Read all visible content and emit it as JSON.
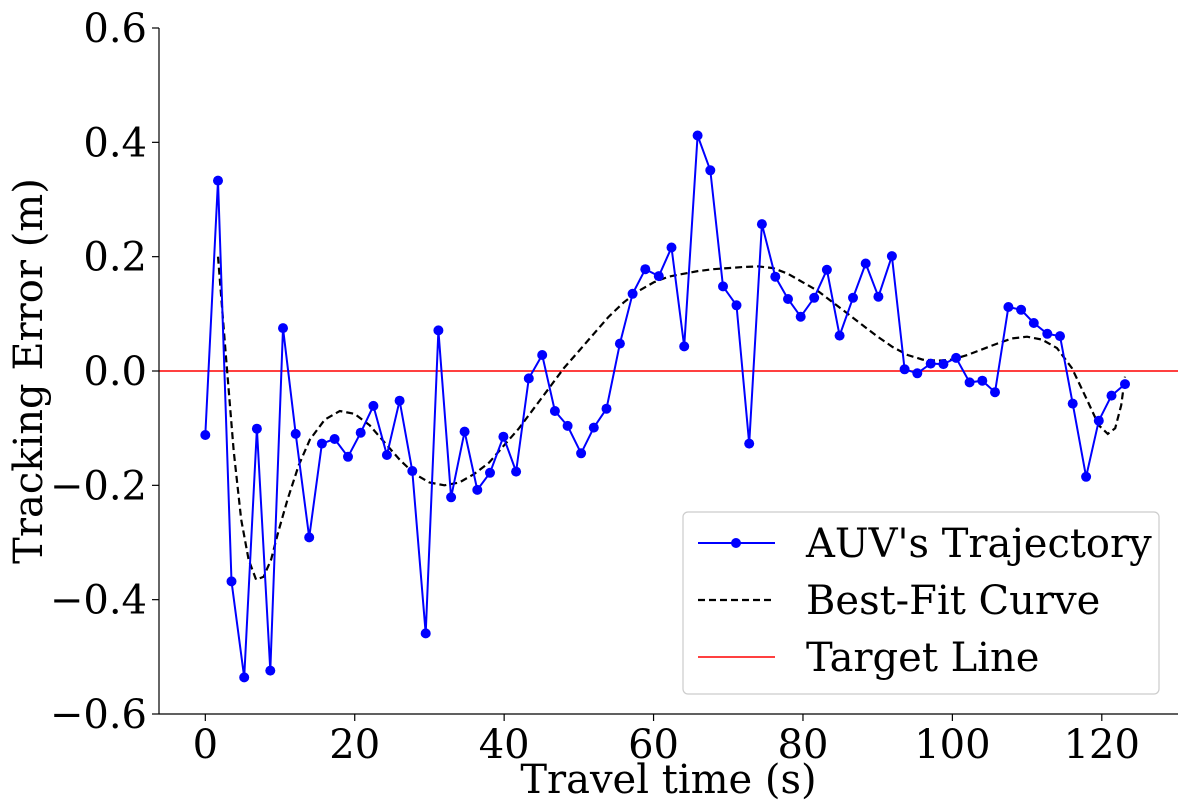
{
  "chart_data": {
    "type": "line",
    "xlabel": "Travel time (s)",
    "ylabel": "Tracking Error (m)",
    "xlim": [
      -6.2,
      130.2
    ],
    "ylim": [
      -0.6,
      0.6
    ],
    "xticks": [
      0,
      20,
      40,
      60,
      80,
      100,
      120
    ],
    "xtick_labels": [
      "0",
      "20",
      "40",
      "60",
      "80",
      "100",
      "120"
    ],
    "yticks": [
      0.6,
      0.4,
      0.2,
      0.0,
      -0.2,
      -0.4,
      -0.6
    ],
    "ytick_labels": [
      "0.6",
      "0.4",
      "0.2",
      "0.0",
      "−0.2",
      "−0.4",
      "−0.6"
    ],
    "grid": false,
    "legend_position": "lower-right",
    "series": [
      {
        "name": "AUV's Trajectory",
        "color": "#0000ff",
        "style": "solid-with-markers",
        "x": [
          0,
          1.7,
          3.5,
          5.2,
          6.9,
          8.7,
          10.4,
          12.1,
          13.9,
          15.6,
          17.3,
          19.1,
          20.8,
          22.5,
          24.3,
          26,
          27.7,
          29.5,
          31.2,
          32.9,
          34.7,
          36.4,
          38.1,
          39.9,
          41.6,
          43.3,
          45.1,
          46.8,
          48.5,
          50.3,
          52,
          53.7,
          55.5,
          57.2,
          58.9,
          60.7,
          62.4,
          64.1,
          65.9,
          67.6,
          69.3,
          71.1,
          72.8,
          74.5,
          76.3,
          78,
          79.7,
          81.5,
          83.2,
          84.9,
          86.7,
          88.4,
          90.1,
          91.9,
          93.6,
          95.3,
          97.1,
          98.8,
          100.5,
          102.3,
          104,
          105.7,
          107.5,
          109.2,
          110.9,
          112.7,
          114.4,
          116.1,
          117.9,
          119.6,
          121.3,
          123.1
        ],
        "y": [
          -0.112,
          0.333,
          -0.368,
          -0.536,
          -0.101,
          -0.524,
          0.075,
          -0.11,
          -0.291,
          -0.127,
          -0.119,
          -0.15,
          -0.108,
          -0.061,
          -0.147,
          -0.052,
          -0.175,
          -0.459,
          0.071,
          -0.221,
          -0.106,
          -0.208,
          -0.178,
          -0.115,
          -0.176,
          -0.013,
          0.028,
          -0.07,
          -0.096,
          -0.144,
          -0.099,
          -0.066,
          0.048,
          0.135,
          0.178,
          0.166,
          0.216,
          0.043,
          0.412,
          0.351,
          0.148,
          0.115,
          -0.127,
          0.257,
          0.165,
          0.126,
          0.095,
          0.128,
          0.177,
          0.062,
          0.128,
          0.188,
          0.13,
          0.201,
          0.003,
          -0.004,
          0.013,
          0.012,
          0.023,
          -0.02,
          -0.017,
          -0.037,
          0.112,
          0.107,
          0.084,
          0.065,
          0.061,
          -0.057,
          -0.185,
          -0.087,
          -0.043,
          -0.023
        ]
      },
      {
        "name": "Best-Fit Curve",
        "color": "#000000",
        "style": "dashed",
        "x": [
          1.7,
          2.8,
          3.8,
          4.8,
          5.8,
          6.8,
          7.8,
          8.8,
          9.8,
          11,
          12.5,
          14,
          16,
          18,
          20,
          22,
          24,
          26,
          28,
          30,
          32,
          34,
          36,
          38,
          40,
          42,
          44,
          46,
          48,
          50,
          52,
          54,
          56,
          58,
          60,
          62,
          64,
          66,
          68,
          70,
          72,
          74,
          76,
          78,
          80,
          82,
          84,
          86,
          88,
          90,
          92,
          94,
          96,
          98,
          100,
          102,
          104,
          106,
          108,
          110,
          112,
          114,
          116,
          118,
          119.6,
          120.8,
          121.8,
          122.6,
          123.1
        ],
        "y": [
          0.2,
          0.02,
          -0.14,
          -0.26,
          -0.33,
          -0.365,
          -0.36,
          -0.33,
          -0.28,
          -0.225,
          -0.165,
          -0.12,
          -0.085,
          -0.07,
          -0.075,
          -0.095,
          -0.125,
          -0.155,
          -0.18,
          -0.195,
          -0.2,
          -0.195,
          -0.18,
          -0.16,
          -0.13,
          -0.1,
          -0.065,
          -0.03,
          0.005,
          0.035,
          0.065,
          0.095,
          0.12,
          0.14,
          0.155,
          0.165,
          0.17,
          0.175,
          0.178,
          0.18,
          0.182,
          0.183,
          0.18,
          0.17,
          0.155,
          0.14,
          0.12,
          0.1,
          0.08,
          0.06,
          0.042,
          0.028,
          0.02,
          0.018,
          0.02,
          0.028,
          0.038,
          0.048,
          0.057,
          0.06,
          0.055,
          0.04,
          0.005,
          -0.05,
          -0.095,
          -0.11,
          -0.1,
          -0.06,
          -0.01
        ]
      },
      {
        "name": "Target Line",
        "color": "#ff0000",
        "style": "solid",
        "y_constant": 0.0
      }
    ]
  }
}
